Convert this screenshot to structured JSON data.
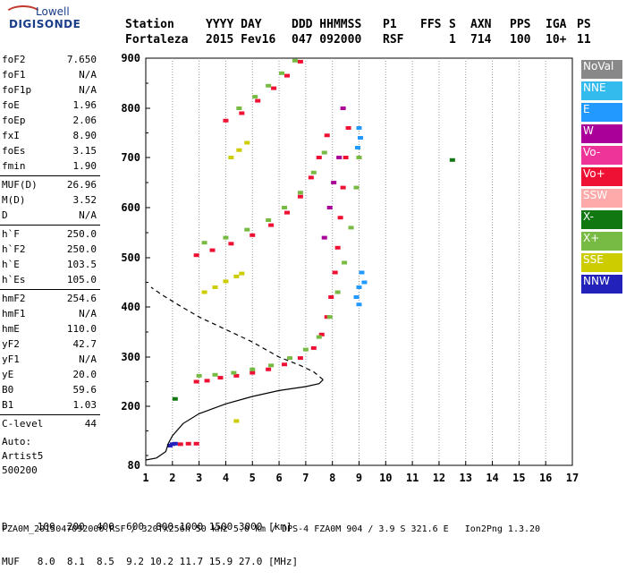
{
  "logo": {
    "line1": "Lowell",
    "line2": "DIGISONDE"
  },
  "header": {
    "row1": [
      "Station",
      "YYYY DAY",
      "DDD HHMMSS",
      "P1",
      "FFS",
      "S",
      "AXN",
      "PPS",
      "IGA",
      "PS"
    ],
    "row2": [
      "Fortaleza",
      "2015 Fev16",
      "047 092000",
      "RSF",
      "",
      "1",
      "714",
      "100",
      "10+",
      "11"
    ]
  },
  "params": {
    "group1": [
      [
        "foF2",
        "7.650"
      ],
      [
        "foF1",
        "N/A"
      ],
      [
        "foF1p",
        "N/A"
      ],
      [
        "foE",
        "1.96"
      ],
      [
        "foEp",
        "2.06"
      ],
      [
        "fxI",
        "8.90"
      ],
      [
        "foEs",
        "3.15"
      ],
      [
        "fmin",
        "1.90"
      ]
    ],
    "group2": [
      [
        "MUF(D)",
        "26.96"
      ],
      [
        "M(D)",
        "3.52"
      ],
      [
        "D",
        "N/A"
      ]
    ],
    "group3": [
      [
        "h`F",
        "250.0"
      ],
      [
        "h`F2",
        "250.0"
      ],
      [
        "h`E",
        "103.5"
      ],
      [
        "h`Es",
        "105.0"
      ]
    ],
    "group4": [
      [
        "hmF2",
        "254.6"
      ],
      [
        "hmF1",
        "N/A"
      ],
      [
        "hmE",
        "110.0"
      ],
      [
        "yF2",
        "42.7"
      ],
      [
        "yF1",
        "N/A"
      ],
      [
        "yE",
        "20.0"
      ],
      [
        "B0",
        "59.6"
      ],
      [
        "B1",
        "1.03"
      ]
    ],
    "group5": [
      [
        "C-level",
        "44"
      ]
    ]
  },
  "auto": {
    "line1": "Auto:",
    "line2": "Artist5",
    "line3": "500200"
  },
  "legend": [
    {
      "label": "NoVal",
      "color": "#888888"
    },
    {
      "label": "NNE",
      "color": "#33bbee"
    },
    {
      "label": "E",
      "color": "#2299ff"
    },
    {
      "label": "W",
      "color": "#aa0099"
    },
    {
      "label": "Vo-",
      "color": "#ee3399"
    },
    {
      "label": "Vo+",
      "color": "#ee1133"
    },
    {
      "label": "SSW",
      "color": "#ffaaaa"
    },
    {
      "label": "X-",
      "color": "#117711"
    },
    {
      "label": "X+",
      "color": "#77bb44"
    },
    {
      "label": "SSE",
      "color": "#cccc00"
    },
    {
      "label": "NNW",
      "color": "#2222bb"
    }
  ],
  "bottom": {
    "d_row": "D     100  200  400  600  800 1000 1500 3000 [km]",
    "muf_row": "MUF   8.0  8.1  8.5  9.2 10.2 11.7 15.9 27.0 [MHz]"
  },
  "footer": "FZA0M_2015047092000.RSF / 320fx256h 50 kHz 5.0 km / DPS-4 FZA0M 904 / 3.9 S 321.6 E   Ion2Png 1.3.20",
  "chart_data": {
    "type": "scatter",
    "title": "",
    "xlabel": "",
    "ylabel": "",
    "xlim": [
      1,
      17
    ],
    "ylim": [
      80,
      900
    ],
    "xticks": [
      "1",
      "2",
      "3",
      "4",
      "5",
      "6",
      "7",
      "8",
      "9",
      "10",
      "11",
      "12",
      "13",
      "14",
      "15",
      "16",
      "17"
    ],
    "yticks": [
      "80",
      "200",
      "300",
      "400",
      "500",
      "600",
      "700",
      "800",
      "900"
    ],
    "grid": "vertical dotted",
    "series": [
      {
        "name": "Vo+",
        "color": "#ee1133",
        "points": [
          [
            2.9,
            250
          ],
          [
            3.3,
            252
          ],
          [
            3.8,
            258
          ],
          [
            4.4,
            262
          ],
          [
            5.0,
            268
          ],
          [
            5.6,
            275
          ],
          [
            6.2,
            285
          ],
          [
            6.8,
            298
          ],
          [
            7.3,
            318
          ],
          [
            7.6,
            345
          ],
          [
            7.8,
            380
          ],
          [
            7.95,
            420
          ],
          [
            8.1,
            470
          ],
          [
            8.2,
            520
          ],
          [
            8.3,
            580
          ],
          [
            8.4,
            640
          ],
          [
            8.5,
            700
          ],
          [
            8.6,
            760
          ],
          [
            2.9,
            505
          ],
          [
            3.5,
            515
          ],
          [
            4.2,
            528
          ],
          [
            5.0,
            545
          ],
          [
            5.7,
            565
          ],
          [
            6.3,
            590
          ],
          [
            6.8,
            622
          ],
          [
            7.2,
            660
          ],
          [
            7.5,
            700
          ],
          [
            7.8,
            745
          ],
          [
            4.0,
            775
          ],
          [
            4.6,
            790
          ],
          [
            5.2,
            815
          ],
          [
            5.8,
            840
          ],
          [
            6.3,
            865
          ],
          [
            6.8,
            893
          ],
          [
            2.3,
            123
          ],
          [
            2.6,
            124
          ],
          [
            2.9,
            124
          ]
        ]
      },
      {
        "name": "X+",
        "color": "#77bb44",
        "points": [
          [
            3.0,
            262
          ],
          [
            3.6,
            264
          ],
          [
            4.3,
            268
          ],
          [
            5.0,
            275
          ],
          [
            5.7,
            283
          ],
          [
            6.4,
            298
          ],
          [
            7.0,
            315
          ],
          [
            7.5,
            340
          ],
          [
            7.9,
            380
          ],
          [
            8.2,
            430
          ],
          [
            8.45,
            490
          ],
          [
            8.7,
            560
          ],
          [
            8.9,
            640
          ],
          [
            9.0,
            700
          ],
          [
            3.2,
            530
          ],
          [
            4.0,
            540
          ],
          [
            4.8,
            556
          ],
          [
            5.6,
            575
          ],
          [
            6.2,
            600
          ],
          [
            6.8,
            630
          ],
          [
            7.3,
            670
          ],
          [
            7.7,
            710
          ],
          [
            4.5,
            800
          ],
          [
            5.1,
            823
          ],
          [
            5.6,
            845
          ],
          [
            6.1,
            870
          ],
          [
            6.6,
            895
          ]
        ]
      },
      {
        "name": "E",
        "color": "#2299ff",
        "points": [
          [
            8.9,
            420
          ],
          [
            9.0,
            440
          ],
          [
            9.1,
            470
          ],
          [
            9.0,
            405
          ],
          [
            9.2,
            450
          ],
          [
            8.95,
            720
          ],
          [
            9.05,
            740
          ],
          [
            9.0,
            760
          ]
        ]
      },
      {
        "name": "SSE",
        "color": "#cccc00",
        "points": [
          [
            3.2,
            430
          ],
          [
            3.6,
            440
          ],
          [
            4.0,
            452
          ],
          [
            4.4,
            462
          ],
          [
            4.6,
            468
          ],
          [
            4.2,
            700
          ],
          [
            4.5,
            715
          ],
          [
            4.8,
            730
          ],
          [
            4.4,
            170
          ]
        ]
      },
      {
        "name": "W",
        "color": "#aa0099",
        "points": [
          [
            7.7,
            540
          ],
          [
            7.9,
            600
          ],
          [
            8.05,
            650
          ],
          [
            8.25,
            700
          ],
          [
            8.4,
            800
          ]
        ]
      },
      {
        "name": "X-",
        "color": "#117711",
        "points": [
          [
            12.5,
            695
          ],
          [
            2.1,
            215
          ]
        ]
      },
      {
        "name": "NNW",
        "color": "#2222bb",
        "points": [
          [
            2.0,
            123
          ],
          [
            1.9,
            120
          ],
          [
            2.1,
            124
          ]
        ]
      }
    ],
    "profile_solid": [
      [
        1.0,
        91
      ],
      [
        1.4,
        95
      ],
      [
        1.75,
        108
      ],
      [
        1.85,
        125
      ],
      [
        2.0,
        140
      ],
      [
        2.4,
        165
      ],
      [
        3.0,
        185
      ],
      [
        4.0,
        205
      ],
      [
        5.0,
        220
      ],
      [
        6.0,
        232
      ],
      [
        7.0,
        240
      ],
      [
        7.5,
        246
      ],
      [
        7.65,
        254
      ]
    ],
    "profile_dashed": [
      [
        7.65,
        254
      ],
      [
        7.3,
        270
      ],
      [
        6.8,
        283
      ],
      [
        6.0,
        300
      ],
      [
        5.0,
        330
      ],
      [
        4.0,
        355
      ],
      [
        3.0,
        380
      ],
      [
        2.2,
        405
      ],
      [
        1.6,
        425
      ],
      [
        1.2,
        440
      ]
    ]
  }
}
